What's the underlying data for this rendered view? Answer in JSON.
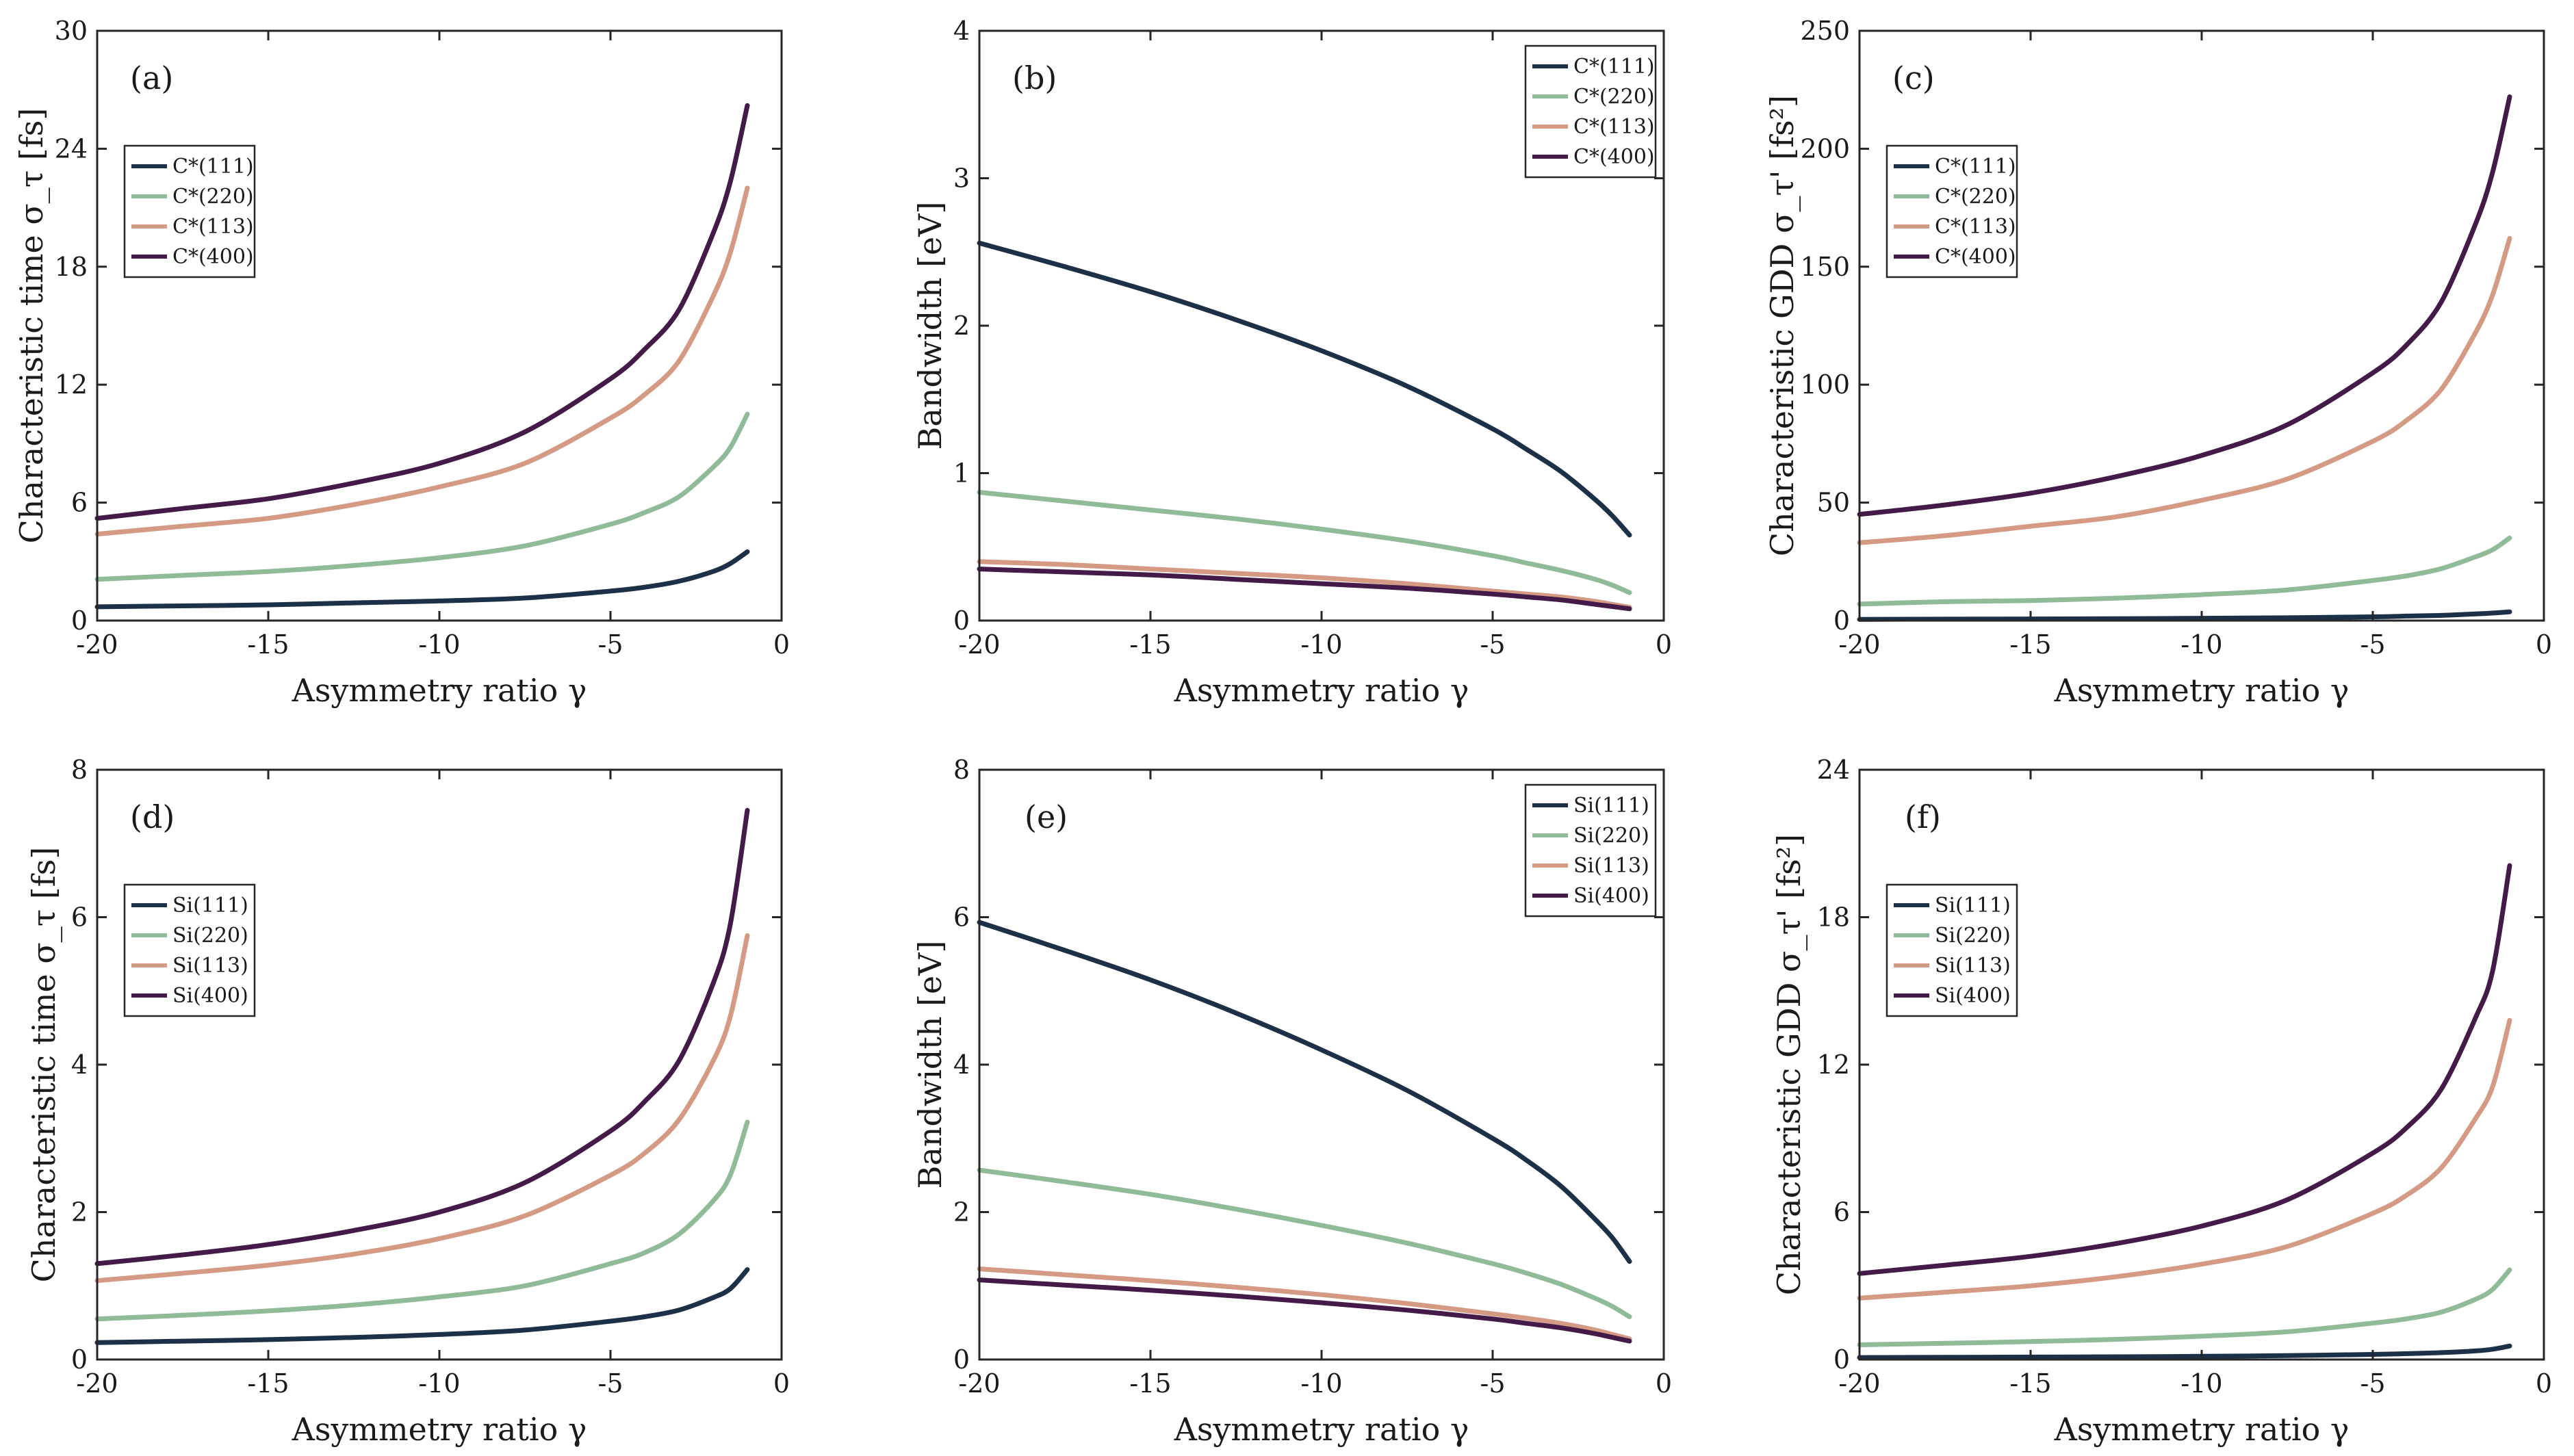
{
  "figure": {
    "colors": {
      "series1": "#1c3148",
      "series2": "#8fbb98",
      "series3": "#d49a84",
      "series4": "#431a48"
    }
  },
  "chart_data": [
    {
      "panel": "(a)",
      "type": "line",
      "xlabel": "Asymmetry ratio γ",
      "ylabel": "Characteristic time σ_τ [fs]",
      "xlim": [
        -20,
        0
      ],
      "ylim": [
        0,
        30
      ],
      "xticks": [
        "-20",
        "-15",
        "-10",
        "-5",
        "0"
      ],
      "yticks": [
        "0",
        "6",
        "12",
        "18",
        "24",
        "30"
      ],
      "legend_position": "upper-left",
      "x": [
        -20,
        -17.5,
        -15,
        -12.5,
        -10,
        -7.5,
        -5,
        -4,
        -3,
        -2,
        -1.5,
        -1
      ],
      "series": [
        {
          "name": "C*(111)",
          "values": [
            0.7,
            0.75,
            0.8,
            0.9,
            1.0,
            1.15,
            1.5,
            1.7,
            2.0,
            2.5,
            2.9,
            3.5
          ]
        },
        {
          "name": "C*(220)",
          "values": [
            2.1,
            2.3,
            2.5,
            2.8,
            3.2,
            3.8,
            4.9,
            5.5,
            6.3,
            7.8,
            8.8,
            10.5
          ]
        },
        {
          "name": "C*(113)",
          "values": [
            4.4,
            4.8,
            5.2,
            5.9,
            6.8,
            8.0,
            10.3,
            11.5,
            13.2,
            16.5,
            18.7,
            22.0
          ]
        },
        {
          "name": "C*(400)",
          "values": [
            5.2,
            5.7,
            6.2,
            7.0,
            8.0,
            9.6,
            12.3,
            13.8,
            15.8,
            19.7,
            22.3,
            26.2
          ]
        }
      ]
    },
    {
      "panel": "(b)",
      "type": "line",
      "xlabel": "Asymmetry ratio γ",
      "ylabel": "Bandwidth [eV]",
      "xlim": [
        -20,
        0
      ],
      "ylim": [
        0,
        4
      ],
      "xticks": [
        "-20",
        "-15",
        "-10",
        "-5",
        "0"
      ],
      "yticks": [
        "0",
        "1",
        "2",
        "3",
        "4"
      ],
      "legend_position": "upper-right",
      "x": [
        -20,
        -17.5,
        -15,
        -12.5,
        -10,
        -7.5,
        -5,
        -4,
        -3,
        -2,
        -1.5,
        -1
      ],
      "series": [
        {
          "name": "C*(111)",
          "values": [
            2.56,
            2.4,
            2.23,
            2.04,
            1.83,
            1.59,
            1.3,
            1.16,
            1.01,
            0.82,
            0.71,
            0.58
          ]
        },
        {
          "name": "C*(220)",
          "values": [
            0.87,
            0.81,
            0.75,
            0.69,
            0.62,
            0.54,
            0.44,
            0.39,
            0.34,
            0.28,
            0.24,
            0.19
          ]
        },
        {
          "name": "C*(113)",
          "values": [
            0.4,
            0.38,
            0.35,
            0.32,
            0.29,
            0.25,
            0.2,
            0.18,
            0.16,
            0.13,
            0.11,
            0.09
          ]
        },
        {
          "name": "C*(400)",
          "values": [
            0.35,
            0.33,
            0.31,
            0.28,
            0.25,
            0.22,
            0.18,
            0.16,
            0.14,
            0.11,
            0.095,
            0.08
          ]
        }
      ]
    },
    {
      "panel": "(c)",
      "type": "line",
      "xlabel": "Asymmetry ratio γ",
      "ylabel": "Characteristic GDD σ_τ' [fs²]",
      "xlim": [
        -20,
        0
      ],
      "ylim": [
        0,
        250
      ],
      "xticks": [
        "-20",
        "-15",
        "-10",
        "-5",
        "0"
      ],
      "yticks": [
        "0",
        "50",
        "100",
        "150",
        "200",
        "250"
      ],
      "legend_position": "upper-left",
      "x": [
        -20,
        -17.5,
        -15,
        -12.5,
        -10,
        -7.5,
        -5,
        -4,
        -3,
        -2,
        -1.5,
        -1
      ],
      "series": [
        {
          "name": "C*(111)",
          "values": [
            0.5,
            0.6,
            0.7,
            0.8,
            1.0,
            1.2,
            1.6,
            1.9,
            2.2,
            2.8,
            3.2,
            3.7
          ]
        },
        {
          "name": "C*(220)",
          "values": [
            7,
            8,
            8.5,
            9.5,
            11,
            13,
            17,
            19,
            22,
            27,
            30,
            35
          ]
        },
        {
          "name": "C*(113)",
          "values": [
            33,
            36,
            40,
            44,
            51,
            60,
            76,
            85,
            98,
            122,
            138,
            162
          ]
        },
        {
          "name": "C*(400)",
          "values": [
            45,
            49,
            54,
            61,
            70,
            83,
            105,
            117,
            135,
            168,
            190,
            222
          ]
        }
      ]
    },
    {
      "panel": "(d)",
      "type": "line",
      "xlabel": "Asymmetry ratio γ",
      "ylabel": "Characteristic time σ_τ [fs]",
      "xlim": [
        -20,
        0
      ],
      "ylim": [
        0,
        8
      ],
      "xticks": [
        "-20",
        "-15",
        "-10",
        "-5",
        "0"
      ],
      "yticks": [
        "0",
        "2",
        "4",
        "6",
        "8"
      ],
      "legend_position": "upper-left",
      "x": [
        -20,
        -17.5,
        -15,
        -12.5,
        -10,
        -7.5,
        -5,
        -4,
        -3,
        -2,
        -1.5,
        -1
      ],
      "series": [
        {
          "name": "Si(111)",
          "values": [
            0.23,
            0.25,
            0.27,
            0.3,
            0.34,
            0.4,
            0.52,
            0.58,
            0.67,
            0.84,
            0.96,
            1.22
          ]
        },
        {
          "name": "Si(220)",
          "values": [
            0.55,
            0.6,
            0.66,
            0.74,
            0.85,
            1.0,
            1.3,
            1.45,
            1.7,
            2.15,
            2.5,
            3.22
          ]
        },
        {
          "name": "Si(113)",
          "values": [
            1.07,
            1.17,
            1.28,
            1.43,
            1.64,
            1.95,
            2.5,
            2.8,
            3.25,
            4.05,
            4.65,
            5.75
          ]
        },
        {
          "name": "Si(400)",
          "values": [
            1.3,
            1.42,
            1.56,
            1.75,
            2.0,
            2.4,
            3.1,
            3.5,
            4.05,
            5.1,
            5.9,
            7.45
          ]
        }
      ]
    },
    {
      "panel": "(e)",
      "type": "line",
      "xlabel": "Asymmetry ratio γ",
      "ylabel": "Bandwidth [eV]",
      "xlim": [
        -20,
        0
      ],
      "ylim": [
        0,
        8
      ],
      "xticks": [
        "-20",
        "-15",
        "-10",
        "-5",
        "0"
      ],
      "yticks": [
        "0",
        "2",
        "4",
        "6",
        "8"
      ],
      "legend_position": "upper-right",
      "x": [
        -20,
        -17.5,
        -15,
        -12.5,
        -10,
        -7.5,
        -5,
        -4,
        -3,
        -2,
        -1.5,
        -1
      ],
      "series": [
        {
          "name": "Si(111)",
          "values": [
            5.93,
            5.55,
            5.15,
            4.7,
            4.2,
            3.65,
            3.0,
            2.7,
            2.35,
            1.9,
            1.65,
            1.33
          ]
        },
        {
          "name": "Si(220)",
          "values": [
            2.57,
            2.41,
            2.24,
            2.04,
            1.82,
            1.58,
            1.3,
            1.17,
            1.02,
            0.83,
            0.72,
            0.58
          ]
        },
        {
          "name": "Si(113)",
          "values": [
            1.23,
            1.15,
            1.07,
            0.98,
            0.88,
            0.76,
            0.62,
            0.56,
            0.49,
            0.4,
            0.34,
            0.28
          ]
        },
        {
          "name": "Si(400)",
          "values": [
            1.08,
            1.01,
            0.94,
            0.86,
            0.77,
            0.67,
            0.55,
            0.49,
            0.43,
            0.35,
            0.3,
            0.25
          ]
        }
      ]
    },
    {
      "panel": "(f)",
      "type": "line",
      "xlabel": "Asymmetry ratio γ",
      "ylabel": "Characteristic GDD σ_τ' [fs²]",
      "xlim": [
        -20,
        0
      ],
      "ylim": [
        0,
        24
      ],
      "xticks": [
        "-20",
        "-15",
        "-10",
        "-5",
        "0"
      ],
      "yticks": [
        "0",
        "6",
        "12",
        "18",
        "24"
      ],
      "legend_position": "upper-left",
      "x": [
        -20,
        -17.5,
        -15,
        -12.5,
        -10,
        -7.5,
        -5,
        -4,
        -3,
        -2,
        -1.5,
        -1
      ],
      "series": [
        {
          "name": "Si(111)",
          "values": [
            0.08,
            0.09,
            0.1,
            0.11,
            0.13,
            0.16,
            0.21,
            0.24,
            0.28,
            0.35,
            0.42,
            0.55
          ]
        },
        {
          "name": "Si(220)",
          "values": [
            0.6,
            0.66,
            0.73,
            0.82,
            0.95,
            1.13,
            1.48,
            1.66,
            1.93,
            2.45,
            2.85,
            3.65
          ]
        },
        {
          "name": "Si(113)",
          "values": [
            2.5,
            2.74,
            3.0,
            3.37,
            3.88,
            4.6,
            5.95,
            6.7,
            7.8,
            9.8,
            11.1,
            13.8
          ]
        },
        {
          "name": "Si(400)",
          "values": [
            3.5,
            3.84,
            4.2,
            4.72,
            5.43,
            6.5,
            8.4,
            9.45,
            11.0,
            13.9,
            15.8,
            20.1
          ]
        }
      ]
    }
  ]
}
